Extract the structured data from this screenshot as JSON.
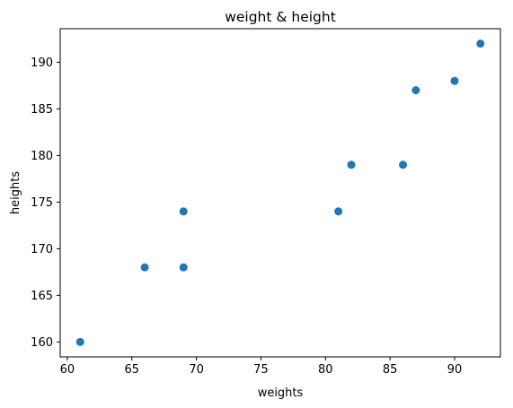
{
  "chart_data": {
    "type": "scatter",
    "title": "weight & height",
    "xlabel": "weights",
    "ylabel": "heights",
    "xlim": [
      59.45,
      93.55
    ],
    "ylim": [
      158.4,
      193.6
    ],
    "xticks": [
      60,
      65,
      70,
      75,
      80,
      85,
      90
    ],
    "yticks": [
      160,
      165,
      170,
      175,
      180,
      185,
      190
    ],
    "grid": false,
    "marker_color": "#1f77b4",
    "points": [
      {
        "x": 61,
        "y": 160
      },
      {
        "x": 66,
        "y": 168
      },
      {
        "x": 69,
        "y": 168
      },
      {
        "x": 69,
        "y": 174
      },
      {
        "x": 81,
        "y": 174
      },
      {
        "x": 82,
        "y": 179
      },
      {
        "x": 86,
        "y": 179
      },
      {
        "x": 87,
        "y": 187
      },
      {
        "x": 90,
        "y": 188
      },
      {
        "x": 92,
        "y": 192
      }
    ]
  }
}
